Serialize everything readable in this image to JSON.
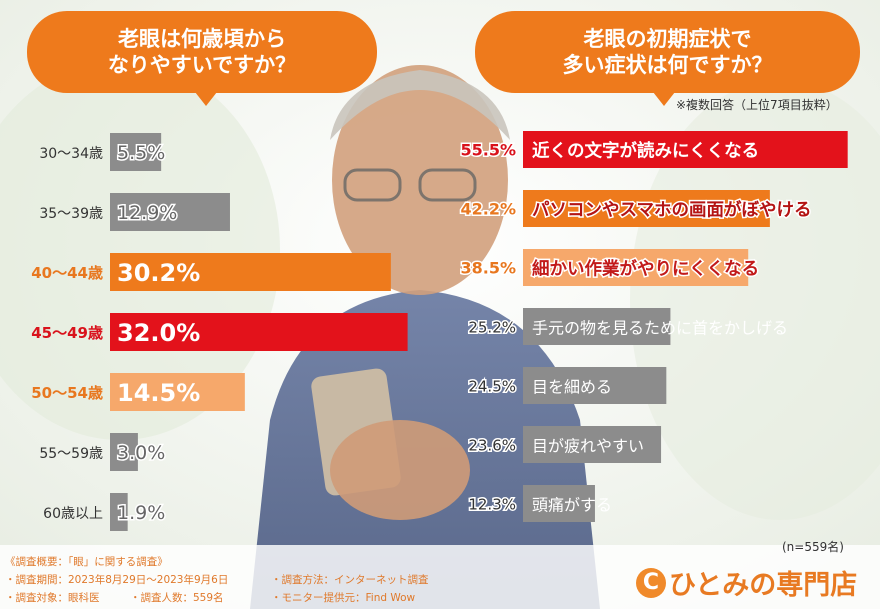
{
  "left_heading": [
    "老眼は何歳頃から",
    "なりやすいですか？"
  ],
  "right_heading": [
    "老眼の初期症状で",
    "多い症状は何ですか？"
  ],
  "right_note": "※複数回答（上位7項目抜粋）",
  "n_label": "(n=559名)",
  "footer": {
    "title": "《調査概要：「眼」に関する調査》",
    "period": "・調査期間：2023年8月29日〜2023年9月6日",
    "target": "・調査対象：眼科医",
    "count": "・調査人数：559名",
    "method": "・調査方法：インターネット調査",
    "provider": "・モニター提供元：Find Wow"
  },
  "logo": {
    "mark": "C",
    "text": "ひとみの専門店"
  },
  "colors": {
    "red": "#e3121b",
    "orange": "#ee7a1c",
    "peach": "#f6a86b",
    "gray": "#8c8c8c",
    "label_red": "#d9121b",
    "label_orange": "#e8771f",
    "label_gray": "#333333"
  },
  "chart_data": [
    {
      "type": "bar",
      "orientation": "horizontal",
      "categories": [
        "30〜34歳",
        "35〜39歳",
        "40〜44歳",
        "45〜49歳",
        "50〜54歳",
        "55〜59歳",
        "60歳以上"
      ],
      "values": [
        5.5,
        12.9,
        30.2,
        32.0,
        14.5,
        3.0,
        1.9
      ],
      "value_labels": [
        "5.5%",
        "12.9%",
        "30.2%",
        "32.0%",
        "14.5%",
        "3.0%",
        "1.9%"
      ],
      "bar_colors": [
        "gray",
        "gray",
        "orange",
        "red",
        "peach",
        "gray",
        "gray"
      ],
      "unit": "%"
    },
    {
      "type": "bar",
      "orientation": "horizontal",
      "categories": [
        "近くの文字が読みにくくなる",
        "パソコンやスマホの画面がぼやける",
        "細かい作業がやりにくくなる",
        "手元の物を見るために首をかしげる",
        "目を細める",
        "目が疲れやすい",
        "頭痛がする"
      ],
      "values": [
        55.5,
        42.2,
        38.5,
        25.2,
        24.5,
        23.6,
        12.3
      ],
      "value_labels": [
        "55.5%",
        "42.2%",
        "38.5%",
        "25.2%",
        "24.5%",
        "23.6%",
        "12.3%"
      ],
      "bar_colors": [
        "red",
        "orange",
        "peach",
        "gray",
        "gray",
        "gray",
        "gray"
      ],
      "unit": "%"
    }
  ]
}
